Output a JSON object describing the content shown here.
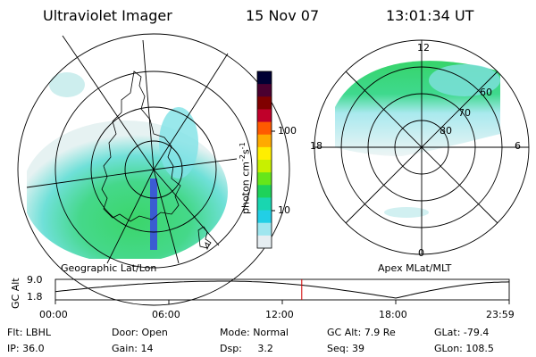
{
  "header": {
    "instrument": "Ultraviolet Imager",
    "date": "15 Nov 07",
    "time": "13:01:34 UT"
  },
  "left_panel": {
    "label": "Geographic Lat/Lon"
  },
  "right_panel": {
    "label": "Apex MLat/MLT",
    "mlt_labels": {
      "top": "12",
      "left": "18",
      "right": "6",
      "bottom": "0"
    },
    "lat_labels": [
      "60",
      "70",
      "80"
    ]
  },
  "colorbar": {
    "unit_main": "photon cm",
    "unit_sup1": "-2",
    "unit_mid": "s",
    "unit_sup2": "-1",
    "ticks": [
      "100",
      "10"
    ],
    "colors": [
      "#000033",
      "#4a0030",
      "#800000",
      "#c0002a",
      "#ff5a00",
      "#ffaa00",
      "#ffee00",
      "#c8f000",
      "#66e61a",
      "#1ed25a",
      "#19d6b0",
      "#22cfe6",
      "#9fe6ef",
      "#e6eef2"
    ]
  },
  "timeline": {
    "ylabel": "GC Alt",
    "y_ticks": [
      "9.0",
      "1.8"
    ],
    "x_ticks": [
      "00:00",
      "06:00",
      "12:00",
      "18:00",
      "23:59"
    ],
    "current_marker_hours": 13.03,
    "marker_color": "#d00000"
  },
  "footer": {
    "flt_label": "Flt:",
    "flt_value": "LBHL",
    "ip_label": "IP:",
    "ip_value": "36.0",
    "door_label": "Door:",
    "door_value": "Open",
    "gain_label": "Gain:",
    "gain_value": "14",
    "mode_label": "Mode:",
    "mode_value": "Normal",
    "dsp_label": "Dsp:",
    "dsp_value": "3.2",
    "gcalt_label": "GC Alt:",
    "gcalt_value": "7.9 Re",
    "seq_label": "Seq:",
    "seq_value": "39",
    "glat_label": "GLat:",
    "glat_value": "-79.4",
    "glon_label": "GLon:",
    "glon_value": "108.5"
  }
}
